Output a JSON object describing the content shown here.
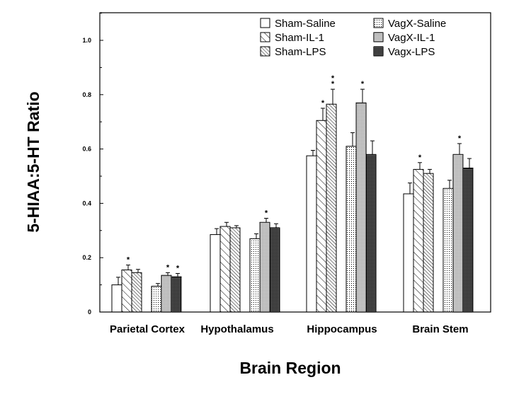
{
  "chart_data": {
    "type": "bar",
    "title": "",
    "xlabel": "Brain Region",
    "ylabel": "5-HIAA:5-HT Ratio",
    "ylim": [
      0,
      1.1
    ],
    "yticks": [
      "0",
      "0.2",
      "0.4",
      "0.6",
      "0.8",
      "1.0"
    ],
    "grid": false,
    "legend_position": "top-right",
    "categories": [
      "Parietal Cortex",
      "Hypothalamus",
      "Hippocampus",
      "Brain Stem"
    ],
    "series": [
      {
        "name": "Sham-Saline",
        "pattern": "blank",
        "values": [
          0.1,
          0.285,
          0.575,
          0.435
        ],
        "errors": [
          0.028,
          0.022,
          0.02,
          0.04
        ],
        "significant": [
          false,
          false,
          false,
          false
        ],
        "sig_marks": [
          "",
          "",
          "",
          ""
        ]
      },
      {
        "name": "Sham-IL-1",
        "pattern": "hatch-wide",
        "values": [
          0.155,
          0.315,
          0.705,
          0.525
        ],
        "errors": [
          0.018,
          0.015,
          0.045,
          0.025
        ],
        "significant": [
          true,
          false,
          true,
          true
        ],
        "sig_marks": [
          "*",
          "",
          "*",
          "*"
        ]
      },
      {
        "name": "Sham-LPS",
        "pattern": "hatch-dense",
        "values": [
          0.145,
          0.31,
          0.765,
          0.51
        ],
        "errors": [
          0.012,
          0.008,
          0.055,
          0.015
        ],
        "significant": [
          false,
          false,
          true,
          false
        ],
        "sig_marks": [
          "",
          "",
          "**",
          ""
        ]
      },
      {
        "name": "VagX-Saline",
        "pattern": "dots-sparse",
        "values": [
          0.095,
          0.27,
          0.61,
          0.455
        ],
        "errors": [
          0.01,
          0.018,
          0.05,
          0.03
        ],
        "significant": [
          false,
          false,
          false,
          false
        ],
        "sig_marks": [
          "",
          "",
          "",
          ""
        ]
      },
      {
        "name": "VagX-IL-1",
        "pattern": "grid",
        "values": [
          0.135,
          0.33,
          0.77,
          0.58
        ],
        "errors": [
          0.01,
          0.015,
          0.05,
          0.04
        ],
        "significant": [
          true,
          true,
          true,
          true
        ],
        "sig_marks": [
          "*",
          "*",
          "*",
          "*"
        ]
      },
      {
        "name": "Vagx-LPS",
        "pattern": "grid-dark",
        "values": [
          0.13,
          0.31,
          0.58,
          0.53
        ],
        "errors": [
          0.012,
          0.015,
          0.05,
          0.035
        ],
        "significant": [
          true,
          false,
          false,
          false
        ],
        "sig_marks": [
          "*",
          "",
          "",
          ""
        ]
      }
    ]
  }
}
